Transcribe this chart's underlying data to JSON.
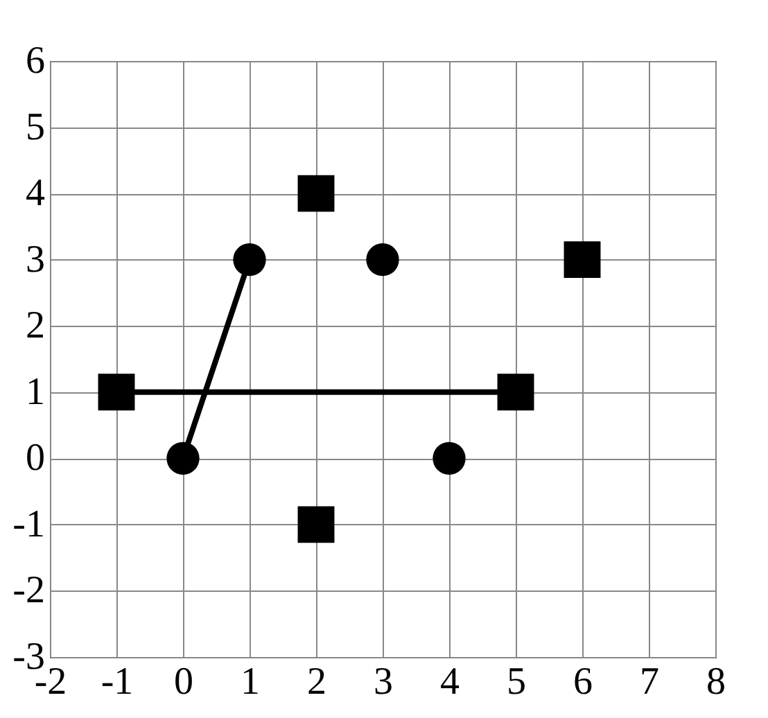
{
  "chart_data": {
    "type": "scatter",
    "xlim": [
      -2,
      8
    ],
    "ylim": [
      -3,
      6
    ],
    "xticks": [
      -2,
      -1,
      0,
      1,
      2,
      3,
      4,
      5,
      6,
      7,
      8
    ],
    "yticks": [
      -3,
      -2,
      -1,
      0,
      1,
      2,
      3,
      4,
      5,
      6
    ],
    "grid": true,
    "series": [
      {
        "type": "line",
        "color": "#000000",
        "x": [
          0,
          1
        ],
        "values": [
          0,
          3
        ],
        "marker": "none",
        "line_style": "solid"
      },
      {
        "type": "line",
        "color": "#000000",
        "x": [
          -1,
          5
        ],
        "values": [
          1,
          1
        ],
        "marker": "none",
        "line_style": "solid"
      },
      {
        "color": "#000000",
        "x": [
          0,
          1,
          3,
          4
        ],
        "values": [
          0,
          3,
          3,
          0
        ],
        "marker": "circle"
      },
      {
        "color": "#000000",
        "x": [
          -1,
          2,
          2,
          5,
          6
        ],
        "values": [
          1,
          4,
          -1,
          1,
          3
        ],
        "marker": "square"
      }
    ]
  }
}
